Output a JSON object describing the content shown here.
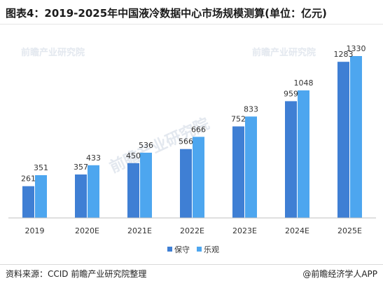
{
  "title": "图表4：2019-2025年中国液冷数据中心市场规模测算(单位：亿元)",
  "source": "资料来源：CCID 前瞻产业研究院整理",
  "credit": "@前瞻经济学人APP",
  "watermark": "前瞻产业研究院",
  "colors": {
    "conservative": "#3f7fd4",
    "optimistic": "#4da6ef"
  },
  "chart_data": {
    "type": "bar",
    "categories": [
      "2019",
      "2020E",
      "2021E",
      "2022E",
      "2023E",
      "2024E",
      "2025E"
    ],
    "series": [
      {
        "name": "保守",
        "values": [
          261,
          357,
          450,
          566,
          752,
          959,
          1283
        ]
      },
      {
        "name": "乐观",
        "values": [
          351,
          433,
          536,
          666,
          833,
          1048,
          1330
        ]
      }
    ],
    "ylim": [
      0,
      1330
    ],
    "legend": "bottom-center",
    "grid": false
  }
}
